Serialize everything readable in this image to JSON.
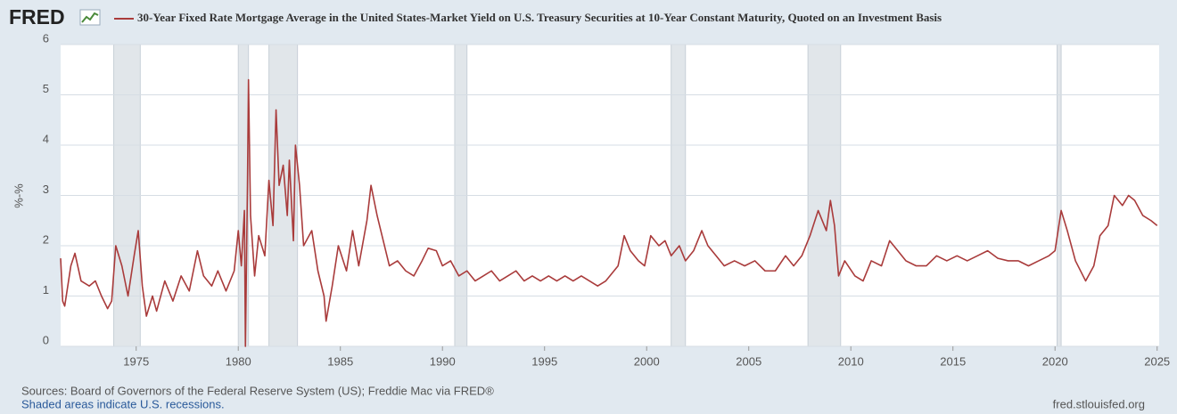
{
  "logo": "FRED",
  "chart_data": {
    "type": "line",
    "y_label": "%-%",
    "sources": "Sources: Board of Governors of the Federal Reserve System (US); Freddie Mac via FRED®",
    "recession_note": "Shaded areas indicate U.S. recessions.",
    "site": "fred.stlouisfed.org",
    "xlim": [
      1971.3,
      2025.1
    ],
    "xticks": [
      1975,
      1980,
      1985,
      1990,
      1995,
      2000,
      2005,
      2010,
      2015,
      2020,
      2025
    ],
    "ylim": [
      0,
      6
    ],
    "yticks": [
      0,
      1,
      2,
      3,
      4,
      5,
      6
    ],
    "grid": true,
    "recessions": [
      [
        1973.9,
        1975.2
      ],
      [
        1980.0,
        1980.5
      ],
      [
        1981.5,
        1982.9
      ],
      [
        1990.6,
        1991.2
      ],
      [
        2001.2,
        2001.9
      ],
      [
        2007.9,
        2009.5
      ],
      [
        2020.1,
        2020.3
      ]
    ],
    "x": [
      1971.3,
      1971.4,
      1971.5,
      1971.8,
      1972.0,
      1972.3,
      1972.7,
      1973.0,
      1973.3,
      1973.6,
      1973.8,
      1974.0,
      1974.3,
      1974.6,
      1974.9,
      1975.1,
      1975.3,
      1975.5,
      1975.8,
      1976.0,
      1976.4,
      1976.8,
      1977.2,
      1977.6,
      1978.0,
      1978.3,
      1978.7,
      1979.0,
      1979.4,
      1979.8,
      1980.0,
      1980.15,
      1980.3,
      1980.35,
      1980.45,
      1980.5,
      1980.6,
      1980.8,
      1981.0,
      1981.3,
      1981.5,
      1981.7,
      1981.85,
      1982.0,
      1982.2,
      1982.4,
      1982.5,
      1982.7,
      1982.8,
      1983.0,
      1983.2,
      1983.6,
      1983.9,
      1984.2,
      1984.3,
      1984.6,
      1984.9,
      1985.3,
      1985.6,
      1985.9,
      1986.3,
      1986.5,
      1986.8,
      1987.1,
      1987.4,
      1987.8,
      1988.2,
      1988.6,
      1989.0,
      1989.3,
      1989.7,
      1990.0,
      1990.4,
      1990.8,
      1991.2,
      1991.6,
      1992.0,
      1992.4,
      1992.8,
      1993.2,
      1993.6,
      1994.0,
      1994.4,
      1994.8,
      1995.2,
      1995.6,
      1996.0,
      1996.4,
      1996.8,
      1997.2,
      1997.6,
      1998.0,
      1998.4,
      1998.6,
      1998.9,
      1999.2,
      1999.6,
      1999.9,
      2000.2,
      2000.6,
      2000.9,
      2001.2,
      2001.6,
      2001.9,
      2002.3,
      2002.7,
      2003.0,
      2003.4,
      2003.8,
      2004.3,
      2004.8,
      2005.3,
      2005.8,
      2006.3,
      2006.8,
      2007.2,
      2007.6,
      2008.0,
      2008.4,
      2008.8,
      2009.0,
      2009.2,
      2009.4,
      2009.7,
      2010.2,
      2010.6,
      2011.0,
      2011.5,
      2011.9,
      2012.3,
      2012.7,
      2013.2,
      2013.7,
      2014.2,
      2014.7,
      2015.2,
      2015.7,
      2016.2,
      2016.7,
      2017.2,
      2017.7,
      2018.2,
      2018.7,
      2019.2,
      2019.7,
      2020.0,
      2020.3,
      2020.6,
      2021.0,
      2021.5,
      2021.9,
      2022.2,
      2022.6,
      2022.9,
      2023.3,
      2023.6,
      2023.9,
      2024.3,
      2024.7,
      2025.0
    ],
    "series": [
      {
        "name": "30-Year Fixed Rate Mortgage Average in the United States-Market Yield on U.S. Treasury Securities at 10-Year Constant Maturity, Quoted on an Investment Basis",
        "color": "#a93b3b",
        "values": [
          1.75,
          0.9,
          0.8,
          1.6,
          1.85,
          1.3,
          1.2,
          1.3,
          1.0,
          0.75,
          0.9,
          2.0,
          1.6,
          1.0,
          1.8,
          2.3,
          1.2,
          0.6,
          1.0,
          0.7,
          1.3,
          0.9,
          1.4,
          1.1,
          1.9,
          1.4,
          1.2,
          1.5,
          1.1,
          1.5,
          2.3,
          1.6,
          2.7,
          0.0,
          3.2,
          5.3,
          2.6,
          1.4,
          2.2,
          1.8,
          3.3,
          2.4,
          4.7,
          3.2,
          3.6,
          2.6,
          3.7,
          2.1,
          4.0,
          3.2,
          2.0,
          2.3,
          1.5,
          1.0,
          0.5,
          1.2,
          2.0,
          1.5,
          2.3,
          1.6,
          2.5,
          3.2,
          2.6,
          2.1,
          1.6,
          1.7,
          1.5,
          1.4,
          1.7,
          1.95,
          1.9,
          1.6,
          1.7,
          1.4,
          1.5,
          1.3,
          1.4,
          1.5,
          1.3,
          1.4,
          1.5,
          1.3,
          1.4,
          1.3,
          1.4,
          1.3,
          1.4,
          1.3,
          1.4,
          1.3,
          1.2,
          1.3,
          1.5,
          1.6,
          2.2,
          1.9,
          1.7,
          1.6,
          2.2,
          2.0,
          2.1,
          1.8,
          2.0,
          1.7,
          1.9,
          2.3,
          2.0,
          1.8,
          1.6,
          1.7,
          1.6,
          1.7,
          1.5,
          1.5,
          1.8,
          1.6,
          1.8,
          2.2,
          2.7,
          2.3,
          2.9,
          2.4,
          1.4,
          1.7,
          1.4,
          1.3,
          1.7,
          1.6,
          2.1,
          1.9,
          1.7,
          1.6,
          1.6,
          1.8,
          1.7,
          1.8,
          1.7,
          1.8,
          1.9,
          1.75,
          1.7,
          1.7,
          1.6,
          1.7,
          1.8,
          1.9,
          2.7,
          2.3,
          1.7,
          1.3,
          1.6,
          2.2,
          2.4,
          3.0,
          2.8,
          3.0,
          2.9,
          2.6,
          2.5,
          2.4
        ]
      }
    ]
  }
}
